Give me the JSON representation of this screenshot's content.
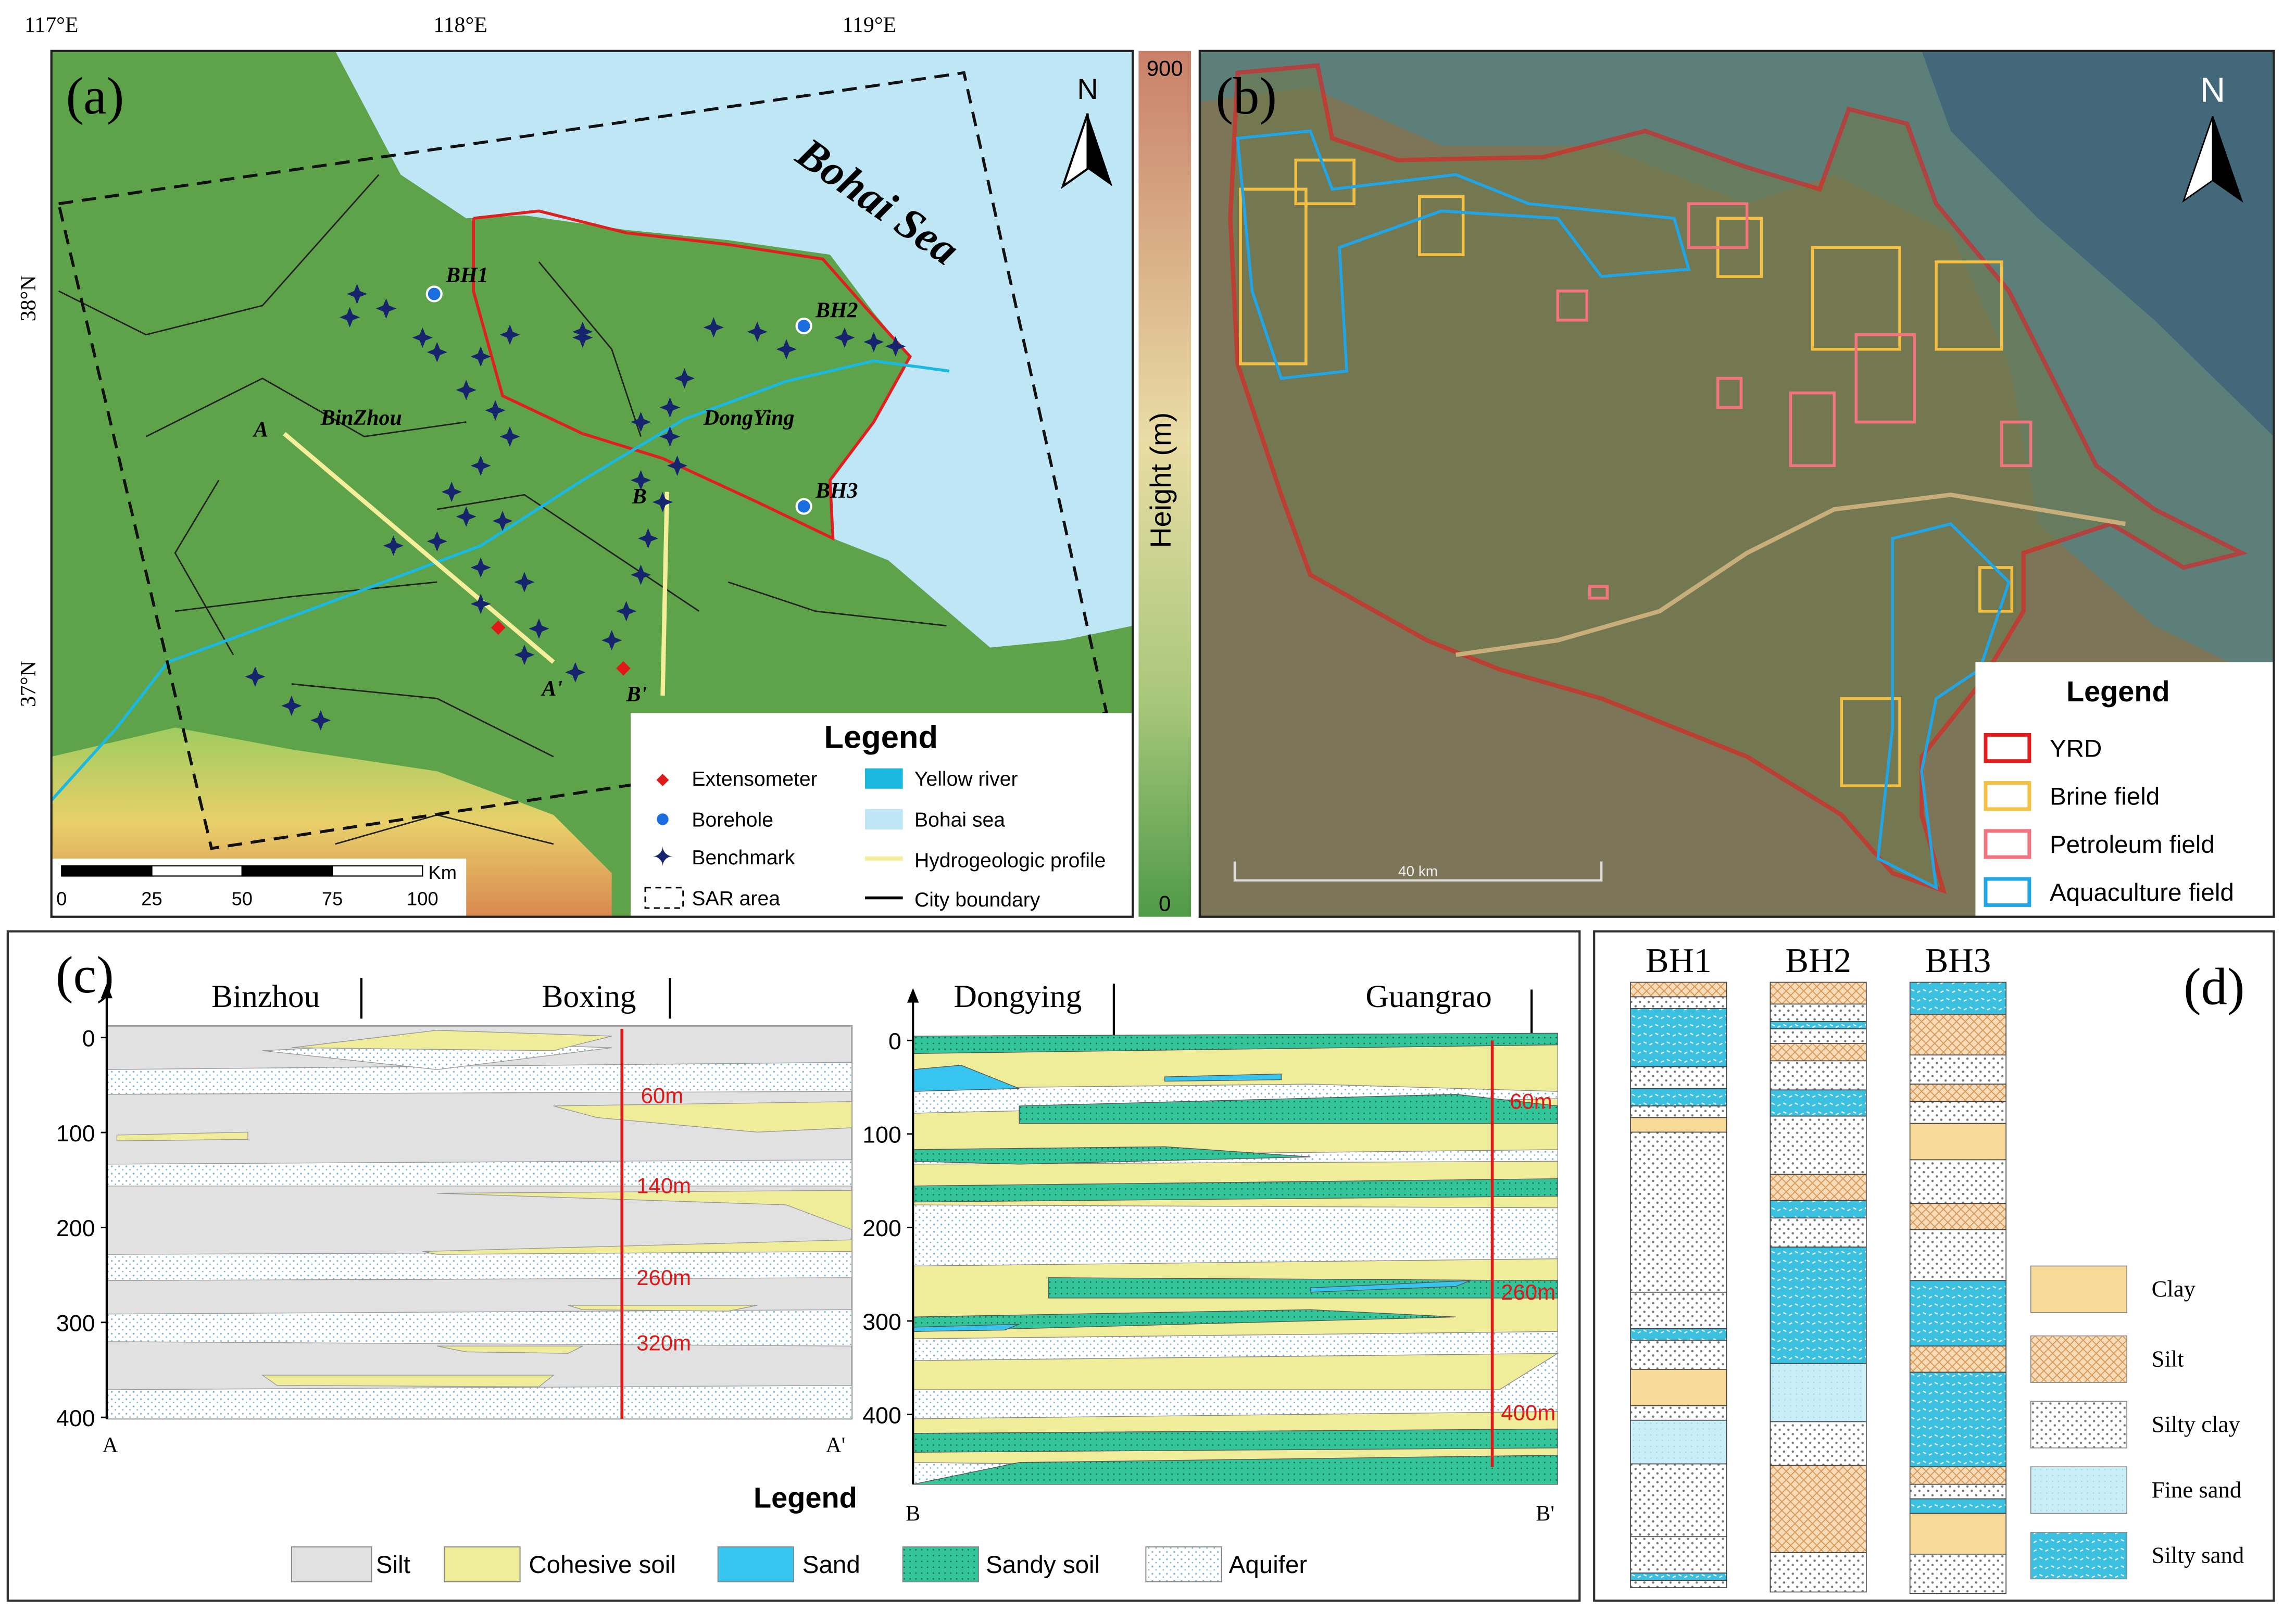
{
  "panel_a": {
    "label": "(a)",
    "lon_ticks": [
      "117°E",
      "118°E",
      "119°E"
    ],
    "lat_ticks": [
      "38°N",
      "37°N"
    ],
    "sea_label": "Bohai Sea",
    "north": "N",
    "places": [
      "BinZhou",
      "DongYing"
    ],
    "boreholes": [
      "BH1",
      "BH2",
      "BH3"
    ],
    "profile_ends": [
      "A",
      "A'",
      "B",
      "B'"
    ],
    "scale": {
      "ticks": [
        0,
        25,
        50,
        75,
        100
      ],
      "unit": "Km"
    },
    "colorbar": {
      "title": "Height (m)",
      "max": "900",
      "min": "0"
    },
    "legend": {
      "title": "Legend",
      "items": [
        "Extensometer",
        "Borehole",
        "Benchmark",
        "SAR area",
        "Yellow river",
        "Bohai sea",
        "Hydrogeologic profile",
        "City boundary"
      ]
    }
  },
  "panel_b": {
    "label": "(b)",
    "north": "N",
    "scale": "40 km",
    "legend": {
      "title": "Legend",
      "items": [
        "YRD",
        "Brine field",
        "Petroleum field",
        "Aquaculture field"
      ]
    }
  },
  "panel_c": {
    "label": "(c)",
    "left": {
      "places": [
        "Binzhou",
        "Boxing"
      ],
      "yticks": [
        0,
        100,
        200,
        300,
        400
      ],
      "depths": [
        "60m",
        "140m",
        "260m",
        "320m"
      ],
      "ends": [
        "A",
        "A'"
      ]
    },
    "right": {
      "places": [
        "Dongying",
        "Guangrao"
      ],
      "yticks": [
        0,
        100,
        200,
        300,
        400
      ],
      "depths": [
        "60m",
        "260m",
        "400m"
      ],
      "ends": [
        "B",
        "B'"
      ]
    },
    "legend": {
      "title": "Legend",
      "items": [
        "Silt",
        "Cohesive soil",
        "Sand",
        "Sandy soil",
        "Aquifer"
      ]
    }
  },
  "panel_d": {
    "label": "(d)",
    "columns": [
      "BH1",
      "BH2",
      "BH3"
    ],
    "legend": [
      "Clay",
      "Silt",
      "Silty clay",
      "Fine sand",
      "Silty sand"
    ]
  }
}
